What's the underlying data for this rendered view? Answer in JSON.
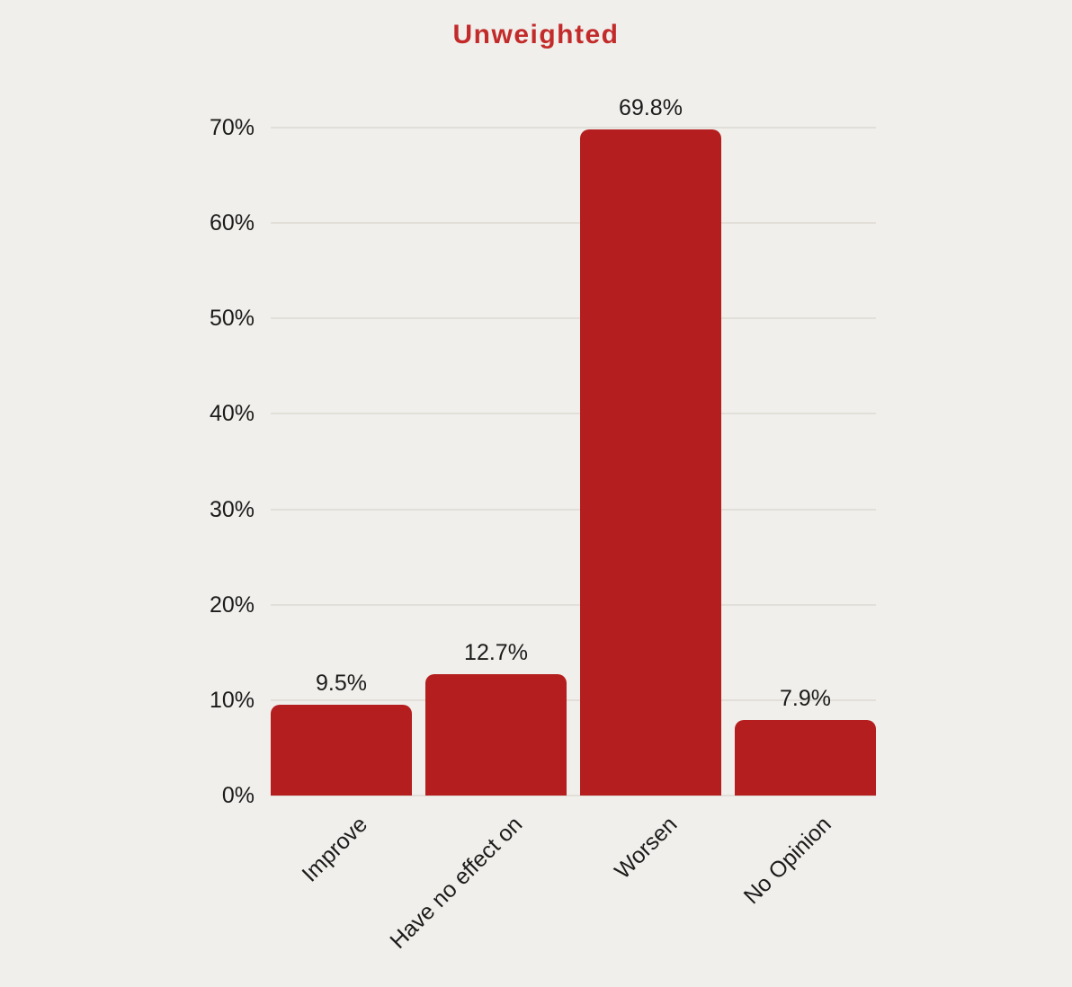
{
  "chart_data": {
    "type": "bar",
    "title": "Unweighted",
    "categories": [
      "Improve",
      "Have no effect on",
      "Worsen",
      "No Opinion"
    ],
    "values": [
      9.5,
      12.7,
      69.8,
      7.9
    ],
    "value_labels": [
      "9.5%",
      "12.7%",
      "69.8%",
      "7.9%"
    ],
    "xlabel": "",
    "ylabel": "",
    "ylim": [
      0,
      70
    ],
    "yticks": [
      0,
      10,
      20,
      30,
      40,
      50,
      60,
      70
    ],
    "ytick_labels": [
      "0%",
      "10%",
      "20%",
      "30%",
      "40%",
      "50%",
      "60%",
      "70%"
    ],
    "grid": true,
    "legend": "none",
    "x_label_rotation_deg": -45,
    "colors": {
      "bar": "#b41e1e",
      "title": "#c32b2b",
      "background": "#f0efeb",
      "gridline": "#e2dfd9",
      "text": "#1b1b1b"
    }
  }
}
